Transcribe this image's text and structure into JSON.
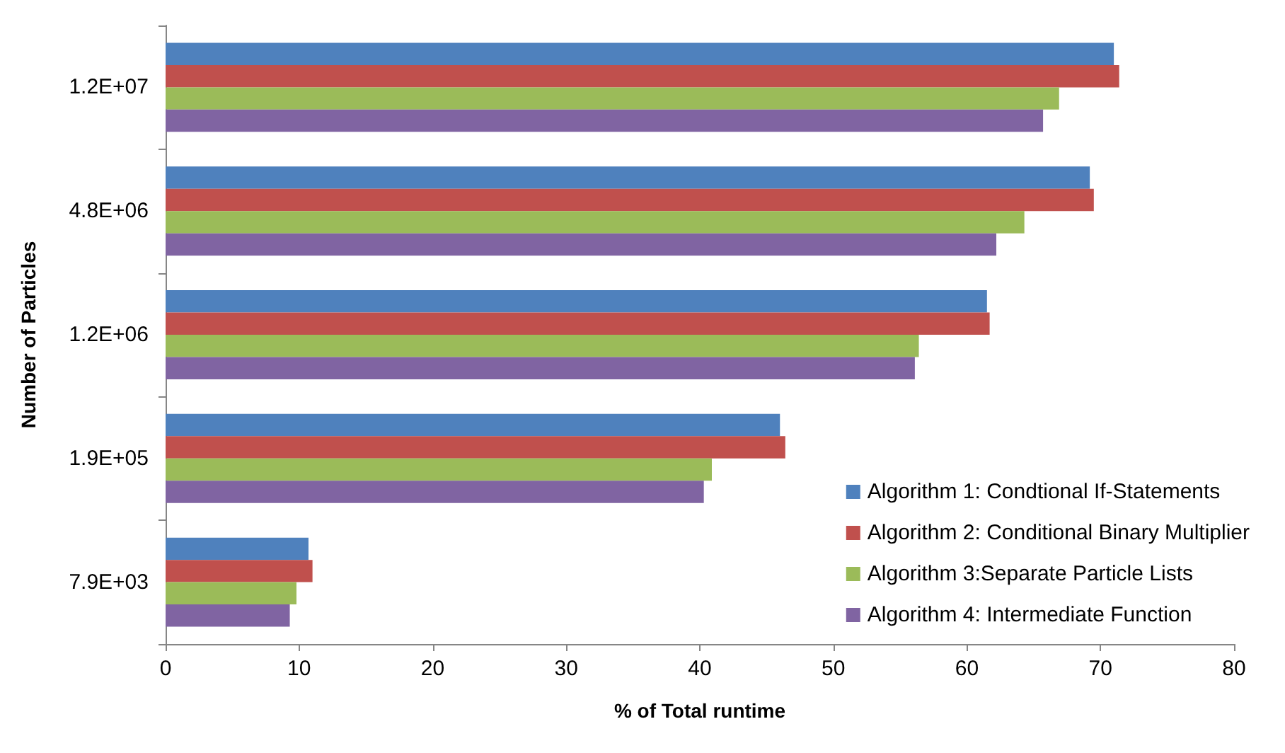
{
  "chart_data": {
    "type": "bar",
    "orientation": "horizontal",
    "xlabel": "% of Total runtime",
    "ylabel": "Number of Particles",
    "categories": [
      "1.2E+07",
      "4.8E+06",
      "1.2E+06",
      "1.9E+05",
      "7.9E+03"
    ],
    "series": [
      {
        "name": "Algorithm 1: Condtional If-Statements",
        "color": "#4f81bd",
        "values": [
          71.0,
          69.2,
          61.5,
          46.0,
          10.7
        ]
      },
      {
        "name": "Algorithm 2: Conditional Binary Multiplier",
        "color": "#c0504d",
        "values": [
          71.4,
          69.5,
          61.7,
          46.4,
          11.0
        ]
      },
      {
        "name": "Algorithm 3:Separate Particle Lists",
        "color": "#9bbb59",
        "values": [
          66.9,
          64.3,
          56.4,
          40.9,
          9.8
        ]
      },
      {
        "name": "Algorithm 4: Intermediate Function",
        "color": "#8064a2",
        "values": [
          65.7,
          62.2,
          56.1,
          40.3,
          9.3
        ]
      }
    ],
    "xlim": [
      0,
      80
    ],
    "xticks": [
      0,
      10,
      20,
      30,
      40,
      50,
      60,
      70,
      80
    ],
    "grid": false,
    "legend": "bottom right"
  }
}
